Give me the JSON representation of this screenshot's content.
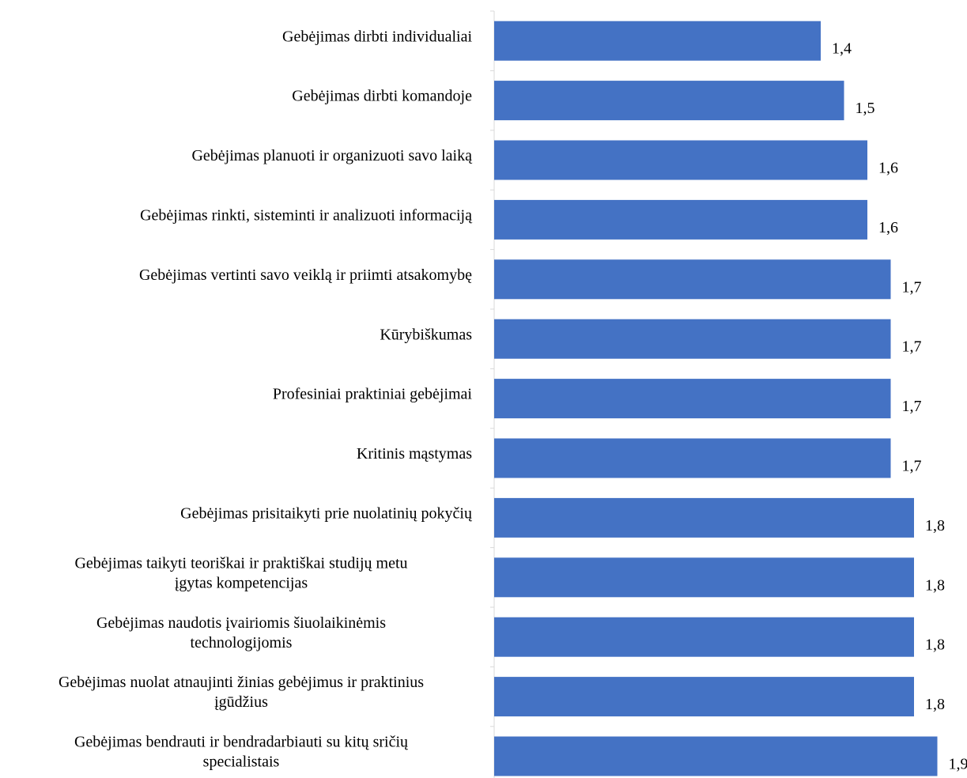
{
  "colors": {
    "bar": "#4472C4",
    "axis": "#D9D9D9",
    "text": "#000000",
    "background": "#FFFFFF"
  },
  "chart_data": {
    "type": "bar",
    "orientation": "horizontal",
    "title": "",
    "xlabel": "",
    "ylabel": "",
    "grid": false,
    "legend": "none",
    "xlim": [
      0,
      2
    ],
    "categories": [
      [
        "Gebėjimas dirbti individualiai"
      ],
      [
        "Gebėjimas dirbti komandoje"
      ],
      [
        "Gebėjimas planuoti ir organizuoti savo laiką"
      ],
      [
        "Gebėjimas rinkti, sisteminti ir analizuoti informaciją"
      ],
      [
        "Gebėjimas vertinti savo veiklą ir priimti atsakomybę"
      ],
      [
        "Kūrybiškumas"
      ],
      [
        "Profesiniai praktiniai gebėjimai"
      ],
      [
        "Kritinis mąstymas"
      ],
      [
        "Gebėjimas prisitaikyti prie nuolatinių pokyčių"
      ],
      [
        "Gebėjimas taikyti teoriškai ir praktiškai studijų metu",
        "įgytas kompetencijas"
      ],
      [
        "Gebėjimas naudotis įvairiomis šiuolaikinėmis",
        "technologijomis"
      ],
      [
        "Gebėjimas nuolat atnaujinti žinias gebėjimus ir praktinius",
        "įgūdžius"
      ],
      [
        "Gebėjimas bendrauti ir bendradarbiauti su kitų sričių",
        "specialistais"
      ]
    ],
    "values": [
      1.4,
      1.5,
      1.6,
      1.6,
      1.7,
      1.7,
      1.7,
      1.7,
      1.8,
      1.8,
      1.8,
      1.8,
      1.9
    ],
    "value_labels": [
      "1,4",
      "1,5",
      "1,6",
      "1,6",
      "1,7",
      "1,7",
      "1,7",
      "1,7",
      "1,8",
      "1,8",
      "1,8",
      "1,8",
      "1,9"
    ]
  }
}
